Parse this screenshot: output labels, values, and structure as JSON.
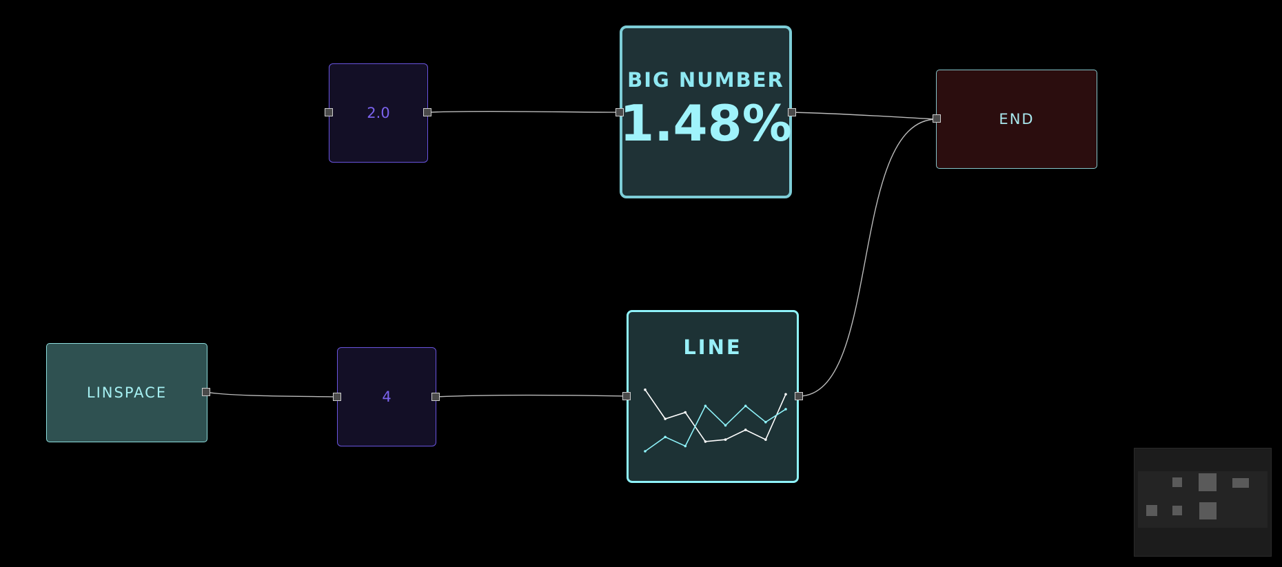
{
  "nodes": {
    "const_top": {
      "label": "2.0"
    },
    "big_number": {
      "title": "BIG NUMBER",
      "value": "1.48%"
    },
    "end": {
      "label": "END"
    },
    "linspace": {
      "label": "LINSPACE"
    },
    "const_bottom": {
      "label": "4"
    },
    "line_chart": {
      "title": "LINE"
    }
  },
  "chart_data": {
    "type": "line",
    "title": "LINE",
    "xlabel": "",
    "ylabel": "",
    "grid": false,
    "x": [
      0,
      1,
      2,
      3,
      4,
      5,
      6,
      7
    ],
    "series": [
      {
        "color": "#ffffff",
        "values": [
          0.95,
          0.5,
          0.6,
          0.15,
          0.18,
          0.33,
          0.18,
          0.88
        ]
      },
      {
        "color": "#8ff3fa",
        "values": [
          0.0,
          0.22,
          0.08,
          0.7,
          0.4,
          0.7,
          0.45,
          0.65
        ]
      }
    ]
  },
  "colors": {
    "background": "#000000",
    "edge": "#bcbcbc",
    "const_border": "#6a55e0",
    "accent_cyan": "#8ff3fa",
    "end_fill": "#2b0d0e"
  }
}
